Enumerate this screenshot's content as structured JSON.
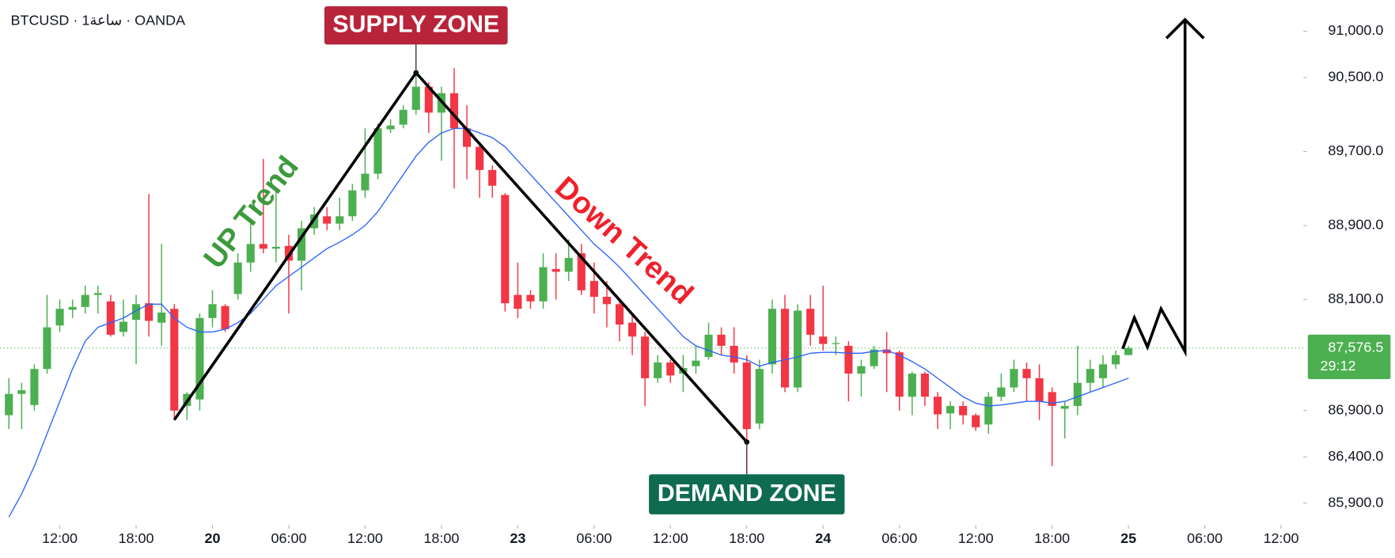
{
  "chart_data": {
    "type": "candlestick",
    "title": "BTCUSD · 1ساعة · OANDA",
    "up_color": "#4caf50",
    "down_color": "#f23645",
    "x": [
      8,
      9,
      10,
      11,
      12,
      13,
      14,
      15,
      16,
      17,
      18,
      19,
      20,
      21,
      22,
      23,
      24,
      25,
      26,
      27,
      28,
      29,
      30,
      31,
      32,
      33,
      34,
      35,
      36,
      37,
      38,
      39,
      40,
      41,
      42,
      43,
      44,
      45,
      46,
      47,
      48,
      49,
      50,
      51,
      52,
      53,
      54,
      55,
      56,
      57,
      58,
      59,
      60,
      61,
      62,
      63,
      64,
      65,
      66,
      67,
      68,
      69,
      70,
      71,
      72,
      73,
      74,
      75,
      76,
      77,
      78,
      79,
      80,
      81,
      82,
      83,
      84,
      85,
      86,
      87,
      88,
      89,
      90,
      91,
      92,
      93,
      94,
      95,
      96
    ],
    "open": [
      86850,
      87080,
      86960,
      87350,
      87820,
      87990,
      88020,
      88150,
      88080,
      87750,
      87880,
      88060,
      87850,
      88000,
      86950,
      87020,
      87900,
      88030,
      88160,
      88500,
      88700,
      88650,
      88680,
      88520,
      88870,
      89000,
      88920,
      89000,
      89280,
      89460,
      89940,
      89990,
      90150,
      90400,
      90120,
      90330,
      89950,
      89750,
      89500,
      89230,
      88150,
      88150,
      88080,
      88430,
      88400,
      88600,
      88300,
      88130,
      88050,
      87850,
      87700,
      87250,
      87420,
      87300,
      87380,
      87480,
      87720,
      87600,
      87420,
      86760,
      87400,
      88000,
      87150,
      88000,
      87700,
      87620,
      87600,
      87300,
      87380,
      87560,
      87530,
      87050,
      87300,
      87050,
      86870,
      86950,
      86850,
      86750,
      87050,
      87150,
      87350,
      87250,
      87100,
      86920,
      86950,
      87200,
      87250,
      87400,
      87500
    ],
    "high": [
      87250,
      87200,
      87400,
      88150,
      88100,
      88100,
      88250,
      88250,
      88150,
      88100,
      88150,
      89240,
      88700,
      88050,
      87100,
      87950,
      88200,
      88050,
      88600,
      88950,
      89620,
      89300,
      88800,
      88950,
      89100,
      89100,
      89200,
      89350,
      89950,
      90000,
      90050,
      90200,
      90900,
      90450,
      90400,
      90600,
      90200,
      89800,
      89550,
      89250,
      88500,
      88200,
      88600,
      88600,
      88750,
      88700,
      88500,
      88300,
      88100,
      87950,
      87750,
      87500,
      87450,
      87500,
      87600,
      87850,
      87800,
      87800,
      87500,
      87450,
      88100,
      88150,
      88050,
      88150,
      88250,
      87700,
      87650,
      87450,
      87600,
      87750,
      87550,
      87320,
      87320,
      87100,
      87000,
      87000,
      86870,
      87100,
      87300,
      87450,
      87420,
      87400,
      87150,
      87000,
      87600,
      87450,
      87500,
      87550,
      87600
    ],
    "low": [
      86700,
      86700,
      86900,
      87300,
      87750,
      87900,
      87950,
      87950,
      87700,
      87700,
      87400,
      87700,
      87600,
      86800,
      86800,
      86900,
      87800,
      87750,
      88100,
      88400,
      88600,
      88500,
      87950,
      88200,
      88800,
      88850,
      88850,
      88950,
      89200,
      89400,
      89900,
      89950,
      90100,
      89900,
      89600,
      89300,
      89400,
      89200,
      89200,
      87970,
      87900,
      88000,
      88000,
      88100,
      88300,
      88150,
      87950,
      87800,
      87650,
      87500,
      86950,
      87200,
      87200,
      87100,
      87300,
      87450,
      87500,
      87300,
      86200,
      86700,
      87300,
      87100,
      87100,
      87600,
      87550,
      87500,
      87000,
      87050,
      87350,
      87100,
      86900,
      86850,
      86950,
      86700,
      86700,
      86750,
      86680,
      86650,
      87000,
      87100,
      87000,
      86800,
      86300,
      86600,
      86850,
      87100,
      87150,
      87350,
      87500
    ],
    "close": [
      87080,
      87120,
      87350,
      87800,
      88000,
      88020,
      88150,
      88170,
      87720,
      87860,
      88050,
      87870,
      87960,
      86900,
      87080,
      87900,
      88050,
      87780,
      88500,
      88700,
      88650,
      88670,
      88520,
      88870,
      89020,
      88920,
      89000,
      89280,
      89460,
      89950,
      89980,
      90150,
      90400,
      90120,
      90330,
      89950,
      89750,
      89500,
      89330,
      88060,
      88000,
      88080,
      88450,
      88400,
      88550,
      88200,
      88130,
      88050,
      87830,
      87700,
      87250,
      87420,
      87280,
      87360,
      87440,
      87720,
      87600,
      87420,
      86700,
      87350,
      88000,
      87150,
      87980,
      87720,
      87620,
      87630,
      87300,
      87380,
      87560,
      87520,
      87050,
      87300,
      87050,
      86860,
      86950,
      86850,
      86720,
      87050,
      87150,
      87350,
      87250,
      87000,
      86950,
      86950,
      87200,
      87350,
      87400,
      87500,
      87576.5
    ],
    "ma": {
      "color": "#2962ff",
      "values": [
        85750,
        86000,
        86300,
        86650,
        87000,
        87350,
        87650,
        87800,
        87850,
        87900,
        87980,
        88050,
        88050,
        87900,
        87800,
        87750,
        87750,
        87780,
        87850,
        87950,
        88100,
        88250,
        88350,
        88450,
        88550,
        88650,
        88720,
        88800,
        88900,
        89050,
        89250,
        89450,
        89650,
        89800,
        89900,
        89950,
        89950,
        89900,
        89850,
        89750,
        89600,
        89450,
        89300,
        89150,
        89000,
        88850,
        88700,
        88580,
        88450,
        88300,
        88150,
        88000,
        87850,
        87700,
        87600,
        87550,
        87500,
        87480,
        87450,
        87380,
        87420,
        87450,
        87480,
        87520,
        87530,
        87530,
        87520,
        87520,
        87540,
        87550,
        87500,
        87430,
        87350,
        87250,
        87150,
        87050,
        86980,
        86950,
        86960,
        86980,
        87000,
        87000,
        86980,
        87000,
        87050,
        87100,
        87150,
        87200,
        87250
      ]
    },
    "xlim": [
      7.3,
      109.75
    ],
    "ylim": [
      85663,
      91337
    ],
    "xticks": [
      {
        "value": 12,
        "label": "12:00"
      },
      {
        "value": 18,
        "label": "18:00"
      },
      {
        "value": 24,
        "label": "20"
      },
      {
        "value": 30,
        "label": "06:00"
      },
      {
        "value": 36,
        "label": "12:00"
      },
      {
        "value": 42,
        "label": "18:00"
      },
      {
        "value": 48,
        "label": "23"
      },
      {
        "value": 54,
        "label": "06:00"
      },
      {
        "value": 60,
        "label": "12:00"
      },
      {
        "value": 66,
        "label": "18:00"
      },
      {
        "value": 72,
        "label": "24"
      },
      {
        "value": 78,
        "label": "06:00"
      },
      {
        "value": 84,
        "label": "12:00"
      },
      {
        "value": 90,
        "label": "18:00"
      },
      {
        "value": 96,
        "label": "25"
      },
      {
        "value": 102,
        "label": "06:00"
      },
      {
        "value": 108,
        "label": "12:00"
      }
    ],
    "yticks": [
      {
        "value": 91000,
        "label": "91,000.0"
      },
      {
        "value": 90500,
        "label": "90,500.0"
      },
      {
        "value": 89700,
        "label": "89,700.0"
      },
      {
        "value": 88900,
        "label": "88,900.0"
      },
      {
        "value": 88100,
        "label": "88,100.0"
      },
      {
        "value": 86900,
        "label": "86,900.0"
      },
      {
        "value": 86400,
        "label": "86,400.0"
      },
      {
        "value": 85900,
        "label": "85,900.0"
      }
    ],
    "last_price": {
      "value": 87576.5,
      "label": "87,576.5"
    },
    "countdown": "29:12",
    "annotations": {
      "supply": "SUPPLY ZONE",
      "demand": "DEMAND ZONE",
      "up_trend": "UP Trend",
      "down_trend": "Down Trend"
    },
    "trendline": {
      "x": [
        21,
        40,
        66
      ],
      "y": [
        86800,
        90550,
        86560
      ]
    },
    "projection": {
      "x": [
        95.55,
        96.46,
        97.5,
        98.56,
        100.45,
        100.45
      ],
      "y": [
        87567,
        87904,
        87587,
        88000,
        87538,
        91125
      ]
    }
  }
}
